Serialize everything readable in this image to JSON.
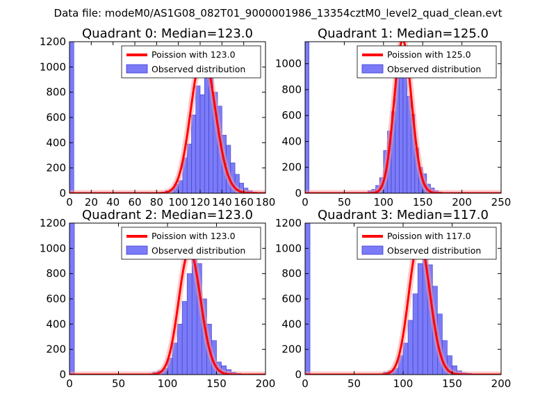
{
  "figure": {
    "suptitle": "Data file: modeM0/AS1G08_082T01_9000001986_13354cztM0_level2_quad_clean.evt",
    "colors": {
      "bar_fill": "#7b7bf7",
      "bar_edge": "#3a3ad0",
      "curve": "#ff0000",
      "curve_glow": "#ff9999"
    }
  },
  "chart_data": [
    {
      "type": "bar",
      "title": "Quadrant 0: Median=123.0",
      "median": 123.0,
      "xlim": [
        0,
        180
      ],
      "ylim": [
        0,
        1200
      ],
      "xticks": [
        0,
        20,
        40,
        60,
        80,
        100,
        120,
        140,
        160,
        180
      ],
      "yticks": [
        0,
        200,
        400,
        600,
        800,
        1000,
        1200
      ],
      "legend": [
        "Poission with 123.0",
        "Observed distribution"
      ],
      "bin_width": 4,
      "bins": [
        [
          0,
          1200
        ],
        [
          84,
          10
        ],
        [
          88,
          20
        ],
        [
          92,
          30
        ],
        [
          96,
          70
        ],
        [
          100,
          100
        ],
        [
          104,
          280
        ],
        [
          108,
          390
        ],
        [
          112,
          620
        ],
        [
          116,
          850
        ],
        [
          120,
          780
        ],
        [
          124,
          1100
        ],
        [
          128,
          1000
        ],
        [
          132,
          800
        ],
        [
          136,
          690
        ],
        [
          140,
          460
        ],
        [
          144,
          380
        ],
        [
          148,
          240
        ],
        [
          152,
          150
        ],
        [
          156,
          80
        ],
        [
          160,
          40
        ],
        [
          164,
          20
        ],
        [
          168,
          10
        ]
      ]
    },
    {
      "type": "bar",
      "title": "Quadrant 1: Median=125.0",
      "median": 125.0,
      "xlim": [
        0,
        250
      ],
      "ylim": [
        0,
        1170
      ],
      "xticks": [
        0,
        50,
        100,
        150,
        200,
        250
      ],
      "yticks": [
        0,
        200,
        400,
        600,
        800,
        1000
      ],
      "legend": [
        "Poission with 125.0",
        "Observed distribution"
      ],
      "bin_width": 5,
      "bins": [
        [
          0,
          1170
        ],
        [
          80,
          20
        ],
        [
          85,
          30
        ],
        [
          90,
          60
        ],
        [
          95,
          120
        ],
        [
          100,
          330
        ],
        [
          105,
          480
        ],
        [
          110,
          630
        ],
        [
          115,
          1080
        ],
        [
          120,
          1100
        ],
        [
          125,
          920
        ],
        [
          130,
          750
        ],
        [
          135,
          610
        ],
        [
          140,
          350
        ],
        [
          145,
          200
        ],
        [
          150,
          150
        ],
        [
          155,
          70
        ],
        [
          160,
          40
        ],
        [
          165,
          20
        ],
        [
          170,
          10
        ]
      ]
    },
    {
      "type": "bar",
      "title": "Quadrant 2: Median=123.0",
      "median": 123.0,
      "xlim": [
        0,
        200
      ],
      "ylim": [
        0,
        1200
      ],
      "xticks": [
        0,
        50,
        100,
        150,
        200
      ],
      "yticks": [
        0,
        200,
        400,
        600,
        800,
        1000,
        1200
      ],
      "legend": [
        "Poission with 123.0",
        "Observed distribution"
      ],
      "bin_width": 5,
      "bins": [
        [
          0,
          1200
        ],
        [
          85,
          20
        ],
        [
          90,
          30
        ],
        [
          95,
          50
        ],
        [
          100,
          130
        ],
        [
          105,
          250
        ],
        [
          110,
          400
        ],
        [
          115,
          580
        ],
        [
          120,
          800
        ],
        [
          125,
          1100
        ],
        [
          130,
          880
        ],
        [
          135,
          600
        ],
        [
          140,
          400
        ],
        [
          145,
          270
        ],
        [
          150,
          100
        ],
        [
          155,
          70
        ],
        [
          160,
          40
        ],
        [
          165,
          20
        ],
        [
          170,
          10
        ]
      ]
    },
    {
      "type": "bar",
      "title": "Quadrant 3: Median=117.0",
      "median": 117.0,
      "xlim": [
        0,
        200
      ],
      "ylim": [
        0,
        1200
      ],
      "xticks": [
        0,
        50,
        100,
        150,
        200
      ],
      "yticks": [
        0,
        200,
        400,
        600,
        800,
        1000,
        1200
      ],
      "legend": [
        "Poission with 117.0",
        "Observed distribution"
      ],
      "bin_width": 5,
      "bins": [
        [
          0,
          1200
        ],
        [
          80,
          20
        ],
        [
          85,
          30
        ],
        [
          90,
          50
        ],
        [
          95,
          150
        ],
        [
          100,
          250
        ],
        [
          105,
          430
        ],
        [
          110,
          640
        ],
        [
          115,
          880
        ],
        [
          120,
          1000
        ],
        [
          125,
          870
        ],
        [
          130,
          700
        ],
        [
          135,
          480
        ],
        [
          140,
          270
        ],
        [
          145,
          150
        ],
        [
          150,
          70
        ],
        [
          155,
          30
        ],
        [
          160,
          15
        ],
        [
          165,
          10
        ],
        [
          170,
          5
        ]
      ]
    }
  ]
}
